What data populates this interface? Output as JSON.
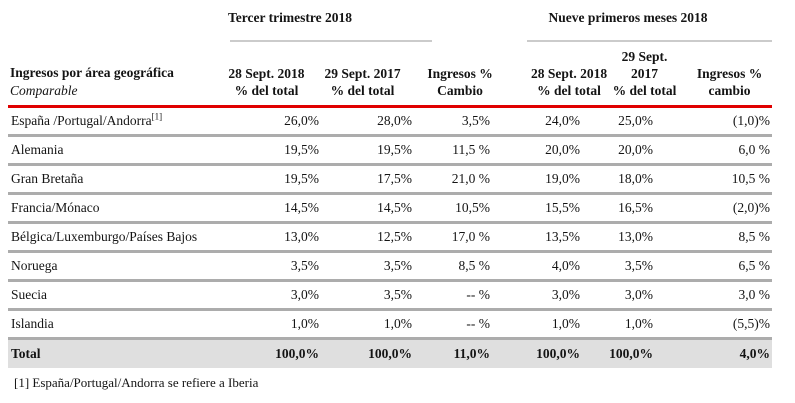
{
  "colors": {
    "accent_red_rule": "#e00000",
    "row_separator_gray": "#acacac",
    "group_rule_gray": "#cbcbcb",
    "total_row_background": "#dfdfdf",
    "text": "#141414"
  },
  "table": {
    "title": "Ingresos por área geográfica",
    "subtitle": "Comparable",
    "groups": [
      {
        "title": "Tercer trimestre 2018"
      },
      {
        "title": "Nueve primeros meses 2018"
      }
    ],
    "columns": [
      {
        "line1": "28 Sept. 2018",
        "line2": "% del total"
      },
      {
        "line1": "29 Sept. 2017",
        "line2": "% del total"
      },
      {
        "line1": "Ingresos %",
        "line2": "Cambio"
      },
      {
        "line1": "28 Sept. 2018",
        "line2": "% del total"
      },
      {
        "line1": "29 Sept. 2017",
        "line2": "% del total"
      },
      {
        "line1": "Ingresos %",
        "line2": "cambio"
      }
    ],
    "rows": [
      {
        "label": "España /Portugal/Andorra",
        "sup": "[1]",
        "values": [
          "26,0%",
          "28,0%",
          "3,5%",
          "24,0%",
          "25,0%",
          "(1,0)%"
        ]
      },
      {
        "label": "Alemania",
        "values": [
          "19,5%",
          "19,5%",
          "11,5 %",
          "20,0%",
          "20,0%",
          "6,0 %"
        ]
      },
      {
        "label": "Gran Bretaña",
        "values": [
          "19,5%",
          "17,5%",
          "21,0 %",
          "19,0%",
          "18,0%",
          "10,5 %"
        ]
      },
      {
        "label": "Francia/Mónaco",
        "values": [
          "14,5%",
          "14,5%",
          "10,5%",
          "15,5%",
          "16,5%",
          "(2,0)%"
        ]
      },
      {
        "label": "Bélgica/Luxemburgo/Países Bajos",
        "values": [
          "13,0%",
          "12,5%",
          "17,0 %",
          "13,5%",
          "13,0%",
          "8,5 %"
        ]
      },
      {
        "label": "Noruega",
        "values": [
          "3,5%",
          "3,5%",
          "8,5 %",
          "4,0%",
          "3,5%",
          "6,5 %"
        ]
      },
      {
        "label": "Suecia",
        "values": [
          "3,0%",
          "3,5%",
          "-- %",
          "3,0%",
          "3,0%",
          "3,0 %"
        ]
      },
      {
        "label": "Islandia",
        "values": [
          "1,0%",
          "1,0%",
          "-- %",
          "1,0%",
          "1,0%",
          "(5,5)%"
        ]
      }
    ],
    "total": {
      "label": "Total",
      "values": [
        "100,0%",
        "100,0%",
        "11,0%",
        "100,0%",
        "100,0%",
        "4,0%"
      ]
    },
    "footnote": "[1] España/Portugal/Andorra se refiere a Iberia"
  }
}
